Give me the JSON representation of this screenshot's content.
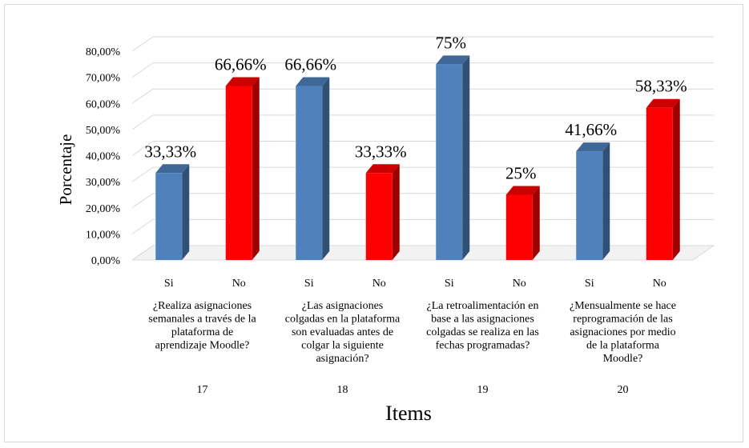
{
  "chart_data": {
    "type": "bar",
    "ylabel": "Porcentaje",
    "xlabel": "Items",
    "ylim": [
      0,
      80
    ],
    "yticks": [
      "0,00%",
      "10,00%",
      "20,00%",
      "30,00%",
      "40,00%",
      "50,00%",
      "60,00%",
      "70,00%",
      "80,00%"
    ],
    "grid": true,
    "categories": [
      "Si",
      "No",
      "Si",
      "No",
      "Si",
      "No",
      "Si",
      "No"
    ],
    "values": [
      33.33,
      66.66,
      66.66,
      33.33,
      75,
      25,
      41.66,
      58.33
    ],
    "data_labels": [
      "33,33%",
      "66,66%",
      "66,66%",
      "33,33%",
      "75%",
      "25%",
      "41,66%",
      "58,33%"
    ],
    "colors": {
      "Si": "#4f81bd",
      "No": "#ff0000"
    },
    "groups": [
      {
        "item": "17",
        "question": [
          "¿Realiza asignaciones",
          "semanales a través de la",
          "plataforma de",
          "aprendizaje Moodle?"
        ]
      },
      {
        "item": "18",
        "question": [
          "¿Las asignaciones",
          "colgadas en la plataforma",
          "son evaluadas antes de",
          "colgar la siguiente",
          "asignación?"
        ]
      },
      {
        "item": "19",
        "question": [
          "¿La retroalimentación en",
          "base a las asignaciones",
          "colgadas se realiza en las",
          "fechas programadas?"
        ]
      },
      {
        "item": "20",
        "question": [
          "¿Mensualmente se hace",
          "reprogramación de las",
          "asignaciones por medio",
          "de la plataforma",
          "Moodle?"
        ]
      }
    ]
  }
}
